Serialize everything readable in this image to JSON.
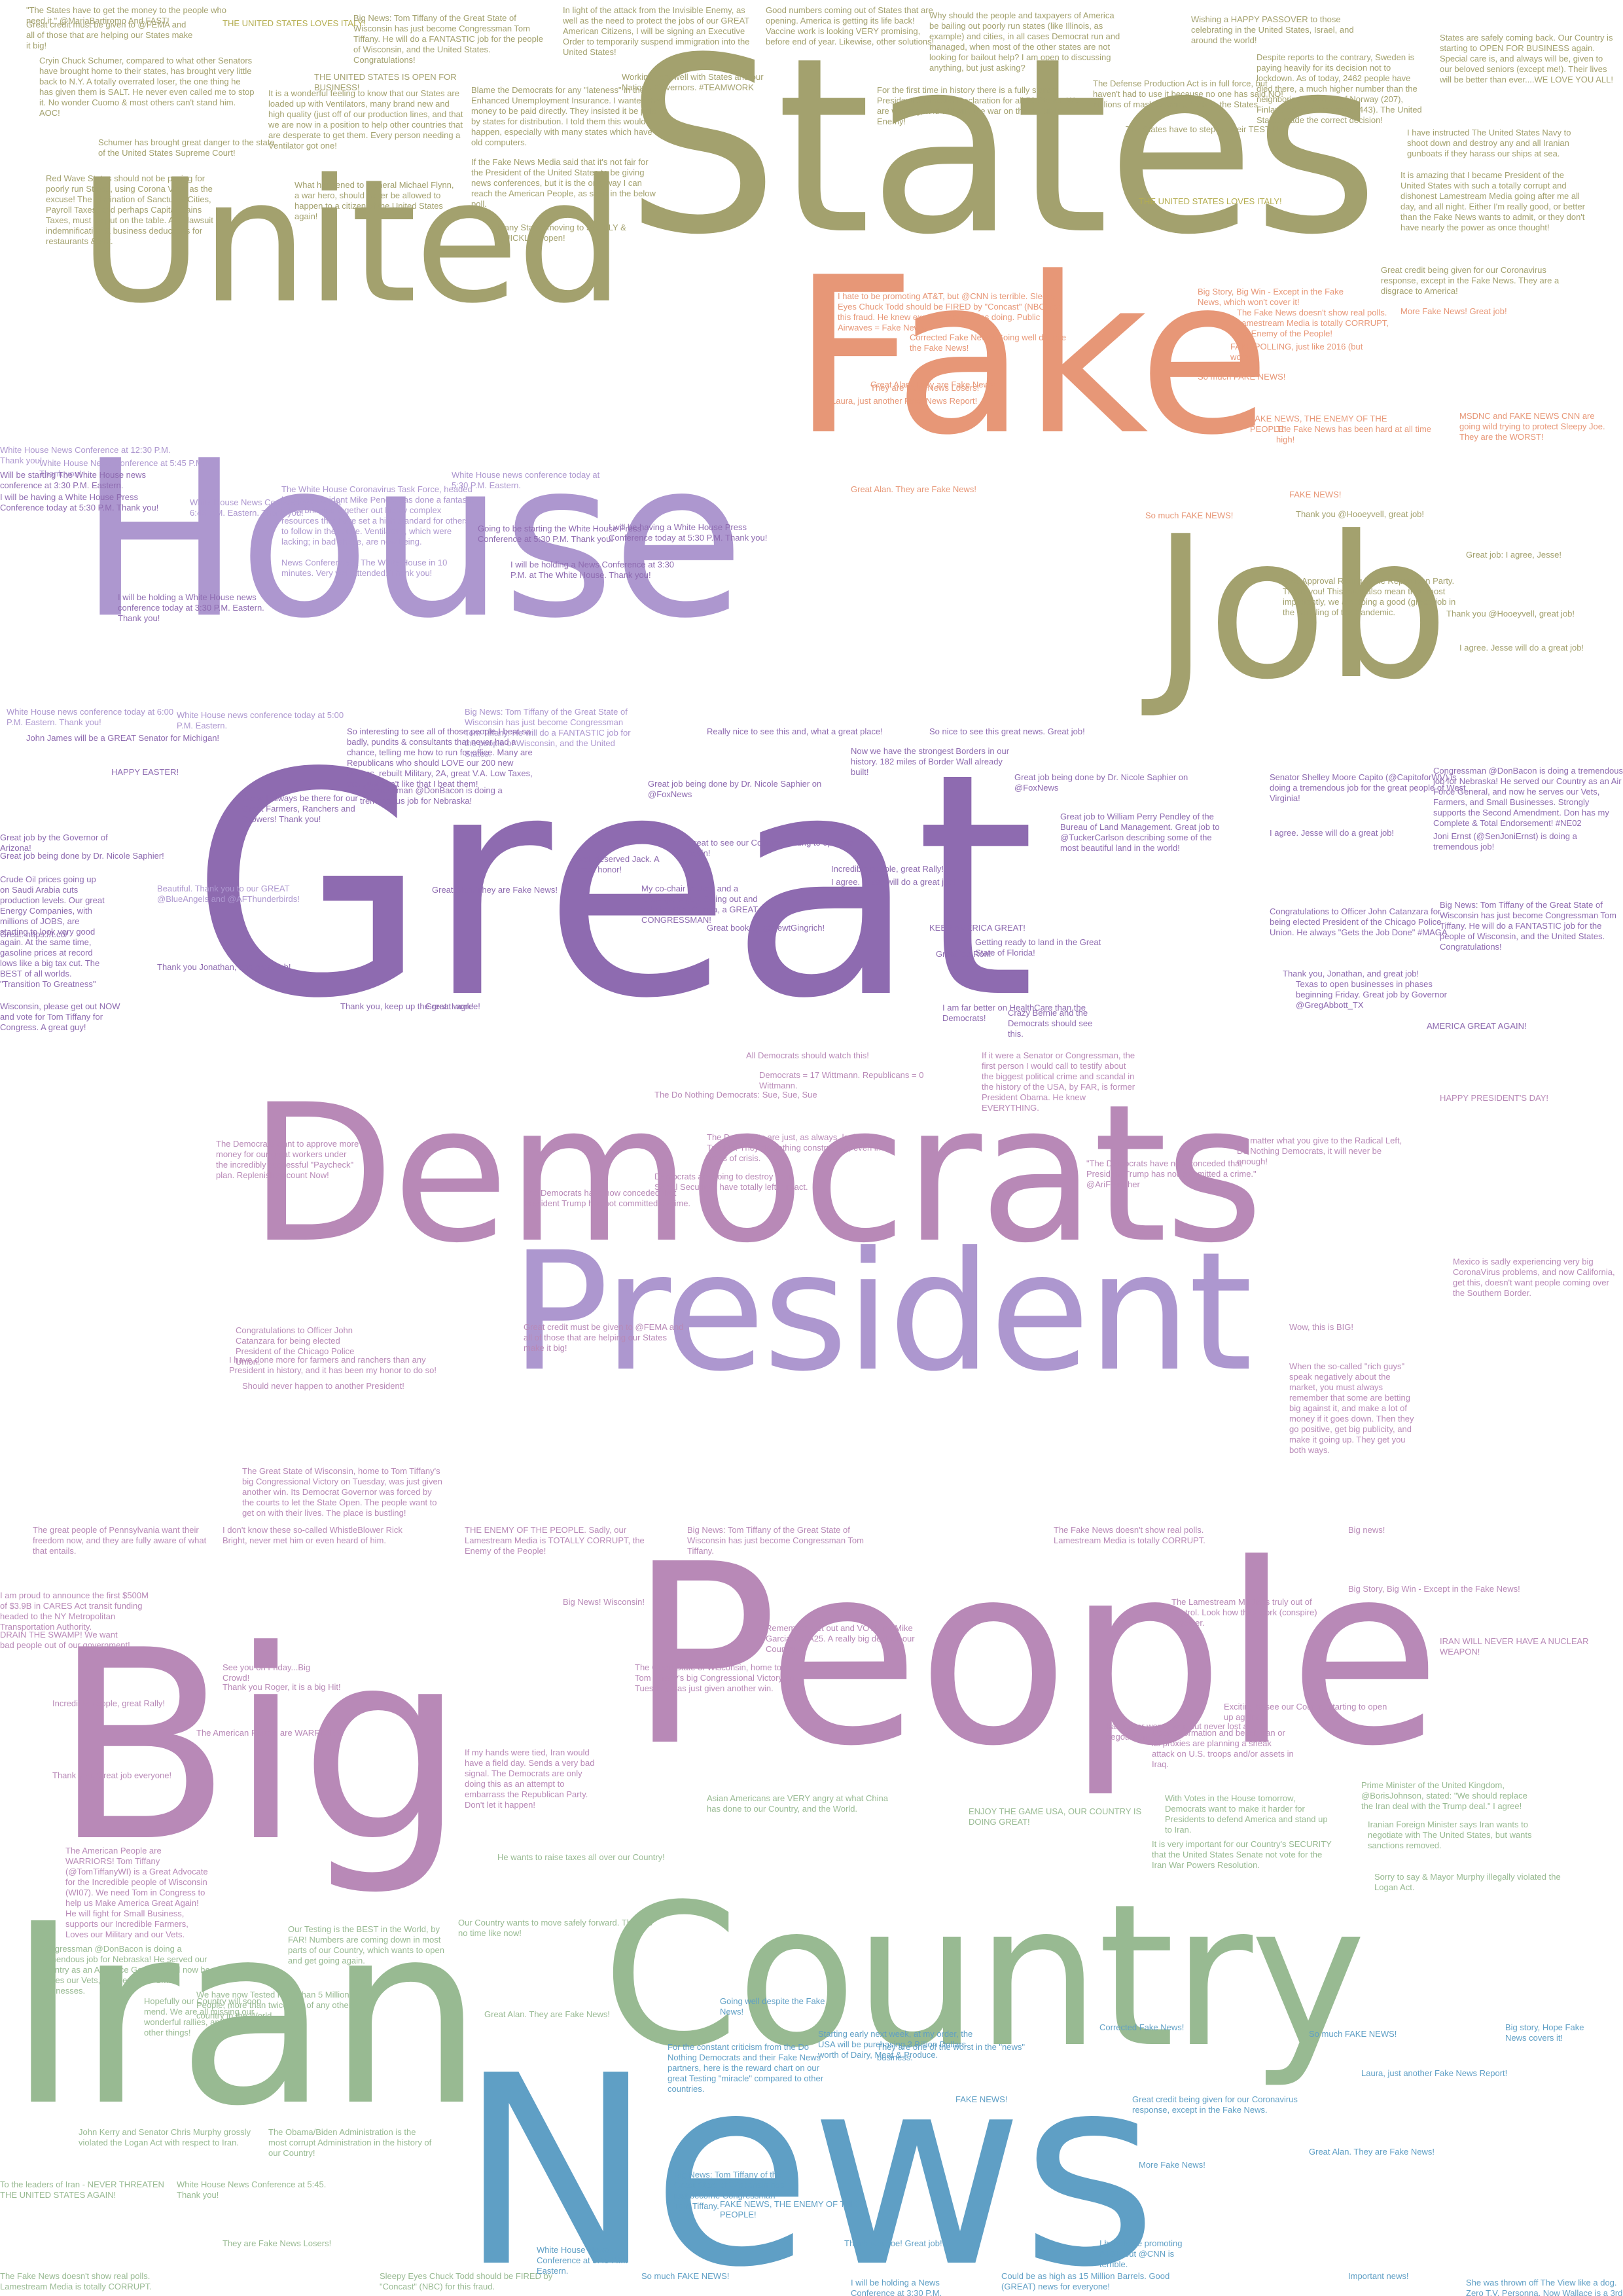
{
  "big_words": [
    {
      "text": "States",
      "color": "#a3a16e"
    },
    {
      "text": "United",
      "color": "#a3a16e"
    },
    {
      "text": "Fake",
      "color": "#e79777"
    },
    {
      "text": "House",
      "color": "#ad97cf"
    },
    {
      "text": "Job",
      "color": "#a3a16e"
    },
    {
      "text": "Great",
      "color": "#8e6bb0"
    },
    {
      "text": "Democrats",
      "color": "#b889b7"
    },
    {
      "text": "President",
      "color": "#ad97cf"
    },
    {
      "text": "People",
      "color": "#b889b7"
    },
    {
      "text": "Big",
      "color": "#b889b7"
    },
    {
      "text": "Country",
      "color": "#98ba92"
    },
    {
      "text": "Iran",
      "color": "#98ba92"
    },
    {
      "text": "News",
      "color": "#5f9fc5"
    }
  ],
  "tweets": [
    "\"The States have to get the money to the people who need it.\" @MariaBartiromo And FAST!",
    "Great credit must be given to @FEMA and all of those that are helping our States make it big!",
    "THE UNITED STATES LOVES ITALY!",
    "Big News: Tom Tiffany of the Great State of Wisconsin has just become Congressman Tom Tiffany. He will do a FANTASTIC job for the people of Wisconsin, and the United States. Congratulations!",
    "In light of the attack from the Invisible Enemy, as well as the need to protect the jobs of our GREAT American Citizens, I will be signing an Executive Order to temporarily suspend immigration into the United States!",
    "Good numbers coming out of States that are opening. America is getting its life back! Vaccine work is looking VERY promising, before end of year. Likewise, other solutions!",
    "Why should the people and taxpayers of America be bailing out poorly run states (like Illinois, as example) and cities, in all cases Democrat run and managed, when most of the other states are not looking for bailout help? I am open to discussing anything, but just asking?",
    "Wishing a HAPPY PASSOVER to those celebrating in the United States, Israel, and around the world!",
    "Despite reports to the contrary, Sweden is paying heavily for its decision not to lockdown. As of today, 2462 people have died there, a much higher number than the neighboring countries of Norway (207), Finland (206) or Denmark (443). The United States made the correct decision!",
    "States are safely coming back. Our Country is starting to OPEN FOR BUSINESS again. Special care is, and always will be, given to our beloved seniors (except me!). Their lives will be better than ever....WE LOVE YOU ALL!",
    "Cryin Chuck Schumer, compared to what other Senators have brought home to their states, has brought very little back to N.Y. A totally overrated loser, the one thing he has given them is SALT. He never even called me to stop it. No wonder Cuomo &amp; most others can't stand him. AOC!",
    "THE UNITED STATES IS OPEN FOR BUSINESS!",
    "It is a wonderful feeling to know that our States are loaded up with Ventilators, many brand new and high quality (just off of our production lines, and that we are now in a position to help other countries that are desperate to get them. Every person needing a Ventilator got one!",
    "Blame the Democrats for any \"lateness\" in the Enhanced Unemployment Insurance. I wanted the money to be paid directly. They insisted it be paid by states for distribution. I told them this would happen, especially with many states which have old computers.",
    "Working very well with States and our Nation's Governors. #TEAMWORK",
    "For the first time in history there is a fully signed Presidential Disaster Declaration for all 50 States. We are winning, and will win, the war on the Invisible Enemy!",
    "The Defense Production Act is in full force, but haven't had to use it because no one has said NO! Millions of masks coming back to the States.",
    "The States have to step up their TESTING!",
    "Schumer has brought great danger to the state of the United States Supreme Court!",
    "Red Wave States should not be paying for poorly run States, using Corona Virus as the excuse! The elimination of Sanctuary Cities, Payroll Taxes, and perhaps Capital Gains Taxes, must be put on the table. Also lawsuit indemnification &amp; business deductions for restaurants &amp; ent.",
    "What happened to General Michael Flynn, a war hero, should never be allowed to happen to a citizen of the United States again!",
    "If the Fake News Media said that it's not fair for the President of the United States to be giving news conferences, but it is the only way I can reach the American People, as seen in the below poll.",
    "Many States moving to SAFELY &amp; QUICKLY reopen!",
    "THE UNITED STATES LOVES ITALY!",
    "I have instructed The United States Navy to shoot down and destroy any and all Iranian gunboats if they harass our ships at sea.",
    "It is amazing that I became President of the United States with such a totally corrupt and dishonest Lamestream Media going after me all day, and all night. Either I'm really good, or better than the Fake News wants to admit, or they don't have nearly the power as once thought!",
    "Great credit being given for our Coronavirus response, except in the Fake News. They are a disgrace to America!",
    "Great Alan. They are Fake News!",
    "I hate to be promoting AT&amp;T, but @CNN is terrible. Sleepy Eyes Chuck Todd should be FIRED by \"Concast\" (NBC) for this fraud. He knew exactly what he was doing. Public Airwaves = Fake News!",
    "Corrected Fake News! Going well despite the Fake News!",
    "Big Story, Big Win - Except in the Fake News, which won't cover it!",
    "The Fake News doesn't show real polls. Lamestream Media is totally CORRUPT, the Enemy of the People!",
    "More Fake News! Great job!",
    "FAKE POLLING, just like 2016 (but worse)!",
    "So much FAKE NEWS!",
    "Laura, just another Fake News Report!",
    "They are Fake News Losers!",
    "FAKE NEWS, THE ENEMY OF THE PEOPLE!",
    "The Fake News has been hard at all time high!",
    "MSDNC and FAKE NEWS CNN are going wild trying to protect Sleepy Joe. They are the WORST!",
    "Great Alan. They are Fake News!",
    "So much FAKE NEWS!",
    "FAKE NEWS!",
    "Thank you @Hooeyvell, great job!",
    "96% Approval Rating in the Republican Party. Thank you! This must also mean that, most importantly, we are doing a good (great) job in the handling of the Pandemic.",
    "Great job: I agree, Jesse!",
    "Thank you @Hooeyvell, great job!",
    "I agree. Jesse will do a great job!",
    "White House News Conference at 12:30 P.M. Thank you!",
    "White House News Conference at 5:45 P.M. Thank you!",
    "Will be starting The White House news conference at 3:30 P.M. Eastern.",
    "I will be having a White House Press Conference today at 5:30 P.M. Thank you!",
    "White House News Conference today at 6:45 P.M. Eastern. Thank you!",
    "The White House Coronavirus Task Force, headed by Vice President Mike Pence, has done a fantastic job of bringing together out highly complex resources that have set a high standard for others to follow in the future. Ventilators, which were lacking; in bad shape, are now being.",
    "White House news conference today at 5:30 P.M. Eastern.",
    "Going to be starting the White House Press Conference at 5:30 P.M. Thank you!",
    "I will be holding a News Conference at 3:30 P.M. at The White House. Thank you!",
    "I will be having a White House Press Conference today at 5:30 P.M. Thank you!",
    "I will be holding a White House news conference today at 3:30 P.M. Eastern. Thank you!",
    "News Conference at The White House in 10 minutes. Very well attended. Thank you!",
    "White House news conference today at 6:00 P.M. Eastern. Thank you!",
    "White House news conference today at 5:00 P.M. Eastern.",
    "Big News: Tom Tiffany of the Great State of Wisconsin has just become Congressman Tom Tiffany. He will do a FANTASTIC job for the people of Wisconsin, and the United States.",
    "So interesting to see all of those people I beat so badly, pundits &amp; consultants that never had a chance, telling me how to run for office. Many are Republicans who should LOVE our 200 new Judges, rebuilt Military, 2A, great V.A. Low Taxes, etc. Just don't like that I beat them!",
    "John James will be a GREAT Senator for Michigan!",
    "HAPPY EASTER!",
    "We will always be there for our Great Farmers, Ranchers and Growers! Thank you!",
    "Congressman @DonBacon is doing a tremendous job for Nebraska!",
    "Great job being done by Dr. Nicole Saphier on @FoxNews",
    "Great to see our Country starting to open up again!",
    "Really nice to see this and, what a great place!",
    "So nice to see this great news. Great job!",
    "Now we have the strongest Borders in our history. 182 miles of Border Wall already built!",
    "Great job being done by Dr. Nicole Saphier on @FoxNews",
    "Great job to William Perry Pendley of the Bureau of Land Management. Great job to @TuckerCarlson describing some of the most beautiful land in the world!",
    "Senator Shelley Moore Capito (@CapitoforWV) is doing a tremendous job for the great people of West Virginia!",
    "Congressman @DonBacon is doing a tremendous job for Nebraska! He served our Country as an Air Force General, and now he serves our Vets, Farmers, and Small Businesses. Strongly supports the Second Amendment. Don has my Complete &amp; Total Endorsement! #NE02",
    "I agree. Jesse will do a great job!",
    "Joni Ernst (@SenJoniErnst) is doing a tremendous job!",
    "Big News: Tom Tiffany of the Great State of Wisconsin has just become Congressman Tom Tiffany. He will do a FANTASTIC job for the people of Wisconsin, and the United States. Congratulations!",
    "Congratulations to Officer John Catanzara for being elected President of the Chicago Police Union. He always \"Gets the Job Done\" #MAGA",
    "Thank you, Jonathan, and great job!",
    "Texas to open businesses in phases beginning Friday. Great job by Governor @GregAbbott_TX",
    "AMERICA GREAT AGAIN!",
    "Great job by the Governor of Arizona!",
    "Great job being done by Dr. Nicole Saphier!",
    "Great: https://t.co/",
    "Crude Oil prices going up on Saudi Arabia cuts production levels. Our great Energy Companies, with millions of JOBS, are starting to look very good again. At the same time, gasoline prices at record lows like a big tax cut. The BEST of all worlds. \"Transition To Greatness\"",
    "Beautiful. Thank you to our GREAT @BlueAngels and @AFThunderbirds!",
    "Thank you Jonathan, and great job!",
    "Thank you, keep up the great work!",
    "Wisconsin, please get out NOW and vote for Tom Tiffany for Congress. A great guy!",
    "Great: I agree!",
    "Great Alan. They are Fake News!",
    "Well deserved Jack. A great honor!",
    "I agree. Jesse will do a great job!",
    "Incredible people, great Rally!",
    "My co-chair in Utah and a really great guy. Swing out and vote for Mike Garcia, a GREAT CONGRESSMAN!",
    "KEEP AMERICA GREAT!",
    "Great book by @NewtGingrich!",
    "Getting ready to land in the Great State of Florida!",
    "Great job Ron!",
    "I am far better on HealthCare than the Democrats!",
    "Crazy Bernie and the Democrats should see this.",
    "The Do Nothing Democrats: Sue, Sue, Sue",
    "The Democrats have now conceded that President Trump has not committed a crime.",
    "If it were a Senator or Congressman, the first person I would call to testify about the biggest political crime and scandal in the history of the USA, by FAR, is former President Obama. He knew EVERYTHING.",
    "All Democrats should watch this!",
    "Democrats = 17 Wittmann. Republicans = 0 Wittmann.",
    "The Democrats want to approve more money for our great workers under the incredibly successful \"Paycheck\" plan. Replenish Account Now!",
    "Democrats are going to destroy your Social Security. I have totally left it intact.",
    "The Democrats are just, as always, looking for Trouble. They do nothing constructive, even in times of crisis.",
    "No matter what you give to the Radical Left, Do Nothing Democrats, it will never be enough!",
    "HAPPY PRESIDENT'S DAY!",
    "\"The Democrats have now conceded that President Trump has not committed a crime.\" @AriFleischer",
    "Mexico is sadly experiencing very big CoronaVirus problems, and now California, get this, doesn't want people coming over the Southern Border.",
    "Congratulations to Officer John Catanzara for being elected President of the Chicago Police Union.",
    "I have done more for farmers and ranchers than any President in history, and it has been my honor to do so!",
    "Should never happen to another President!",
    "The Great State of Wisconsin, home to Tom Tiffany's big Congressional Victory on Tuesday, was just given another win. Its Democrat Governor was forced by the courts to let the State Open. The people want to get on with their lives. The place is bustling!",
    "Great credit must be given to @FEMA and all of those that are helping our States make it big!",
    "Wow, this is BIG!",
    "When the so-called \"rich guys\" speak negatively about the market, you must always remember that some are betting big against it, and make a lot of money if it goes down. Then they go positive, get big publicity, and make it going up. They get you both ways.",
    "The great people of Pennsylvania want their freedom now, and they are fully aware of what that entails.",
    "I am proud to announce the first $500M of $3.9B in CARES Act transit funding headed to the NY Metropolitan Transportation Authority.",
    "DRAIN THE SWAMP! We want bad people out of our government!",
    "I don't know these so-called WhistleBlower Rick Bright, never met him or even heard of him.",
    "THE ENEMY OF THE PEOPLE. Sadly, our Lamestream Media is TOTALLY CORRUPT, the Enemy of the People!",
    "Big News: Tom Tiffany of the Great State of Wisconsin has just become Congressman Tom Tiffany.",
    "The Fake News doesn't show real polls. Lamestream Media is totally CORRUPT.",
    "The Lamestream Media is truly out of control. Look how they work (conspire) together.",
    "Big news!",
    "Big Story, Big Win - Except in the Fake News!",
    "Big News! Wisconsin!",
    "Remember, get out and VOTE for Mike Garcia in CA25. A really big deal for our Country!",
    "See you on Friday...Big Crowd!",
    "Thank you Roger, it is a big Hit!",
    "Incredible people, great Rally!",
    "The American People are WARRIORS!",
    "Thank you, Great job everyone!",
    "The American People are WARRIORS! Tom Tiffany (@TomTiffanyWI) is a Great Advocate for the Incredible people of Wisconsin (WI07). We need Tom in Congress to help us Make America Great Again! He will fight for Small Business, supports our Incredible Farmers, Loves our Military and our Vets.",
    "The Great State of Wisconsin, home to Tom Tiffany's big Congressional Victory on Tuesday, was just given another win.",
    "If my hands were tied, Iran would have a field day. Sends a very bad signal. The Democrats are only doing this as an attempt to embarrass the Republican Party. Don't let it happen!",
    "Iran never won a war, but never lost a negotiation!",
    "Upon information and belief, Iran or its proxies are planning a sneak attack on U.S. troops and/or assets in Iraq.",
    "IRAN WILL NEVER HAVE A NUCLEAR WEAPON!",
    "Exciting to see our Country starting to open up again!",
    "Congressman @DonBacon is doing a tremendous job for Nebraska! He served our Country as an Air Force General, and now he serves our Vets, Farmers, and Small Businesses.",
    "Hopefully our Country will soon mend. We are all missing our wonderful rallies, and many other things!",
    "Our Testing is the BEST in the World, by FAR! Numbers are coming down in most parts of our Country, which wants to open and get going again.",
    "We have now Tested more than 5 Million People, more than twice that of any other country in the World.",
    "He wants to raise taxes all over our Country!",
    "Our Country wants to move safely forward. There is no time like now!",
    "Asian Americans are VERY angry at what China has done to our Country, and the World.",
    "ENJOY THE GAME USA, OUR COUNTRY IS DOING GREAT!",
    "Prime Minister of the United Kingdom, @BorisJohnson, stated: \"We should replace the Iran deal with the Trump deal.\" I agree!",
    "It is very important for our Country's SECURITY that the United States Senate not vote for the Iran War Powers Resolution.",
    "With Votes in the House tomorrow, Democrats want to make it harder for Presidents to defend America and stand up to Iran.",
    "Iranian Foreign Minister says Iran wants to negotiate with The United States, but wants sanctions removed.",
    "Sorry to say &amp; Mayor Murphy illegally violated the Logan Act.",
    "John Kerry and Senator Chris Murphy grossly violated the Logan Act with respect to Iran.",
    "To the leaders of Iran - NEVER THREATEN THE UNITED STATES AGAIN!",
    "The Obama/Biden Administration is the most corrupt Administration in the history of our Country!",
    "They are Fake News Losers!",
    "The Fake News doesn't show real polls. Lamestream Media is totally CORRUPT.",
    "White House News Conference at 5:45. Thank you!",
    "Sleepy Eyes Chuck Todd should be FIRED by \"Concast\" (NBC) for this fraud.",
    "Great Alan. They are Fake News!",
    "Going well despite the Fake News!",
    "For the constant criticism from the Do Nothing Democrats and their Fake News partners, here is the reward chart on our great Testing \"miracle\" compared to other countries.",
    "Starting early next week, at my order, the USA will be purchasing 3 Billion Dollars worth of Dairy, Meat &amp; Produce.",
    "They are one of the worst in the \"news\" business.",
    "Big News: Tom Tiffany of the Great State of Wisconsin has just become Congressman Tom Tiffany.",
    "FAKE NEWS!",
    "Corrected Fake News!",
    "Great credit being given for our Coronavirus response, except in the Fake News.",
    "So much FAKE NEWS!",
    "Laura, just another Fake News Report!",
    "Big story, Hope Fake News covers it!",
    "More Fake News!",
    "Great Alan. They are Fake News!",
    "White House News Conference at 5:45 P.M. Eastern.",
    "So much FAKE NEWS!",
    "FAKE NEWS, THE ENEMY OF THE PEOPLE!",
    "I will be holding a News Conference at 3:30 P.M.",
    "Thank you Joe! Great job!",
    "Could be as high as 15 Million Barrels. Good (GREAT) news for everyone!",
    "I hate to be promoting AT&amp;T, but @CNN is terrible.",
    "She was thrown off The View like a dog. Zero T.V. Personna. Now Wallace is a 3rd rate lapdog!",
    "Important news!"
  ]
}
